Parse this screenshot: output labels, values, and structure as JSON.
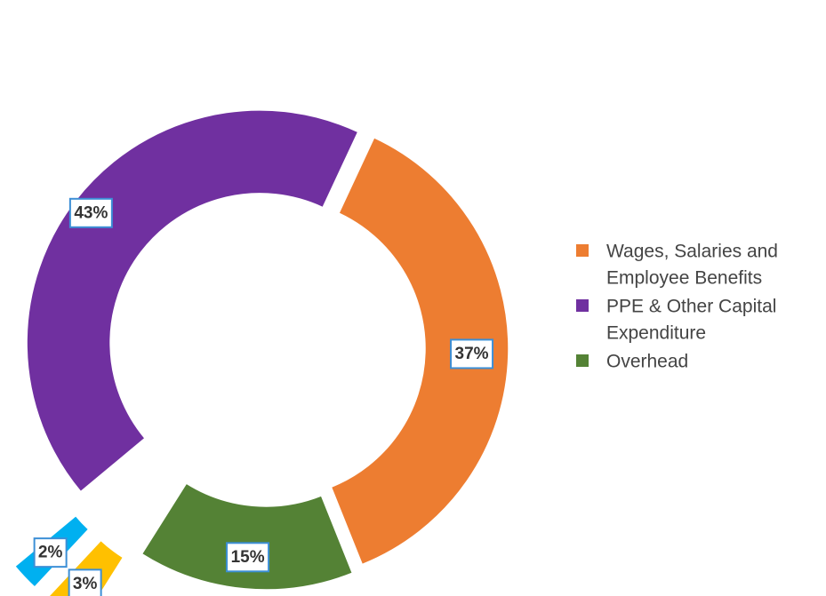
{
  "chart_data": {
    "type": "pie",
    "variant": "exploded-donut",
    "title": "",
    "slices": [
      {
        "name": "Wages, Salaries and Employee Benefits",
        "value": 37,
        "label": "37%",
        "color": "#ed7d31"
      },
      {
        "name": "Overhead",
        "value": 15,
        "label": "15%",
        "color": "#548235"
      },
      {
        "name": "",
        "value": 3,
        "label": "3%",
        "color": "#ffc000"
      },
      {
        "name": "",
        "value": 2,
        "label": "2%",
        "color": "#00b0f0"
      },
      {
        "name": "PPE & Other Capital Expenditure",
        "value": 43,
        "label": "43%",
        "color": "#7030a0"
      }
    ],
    "legend": {
      "position": "right",
      "items": [
        {
          "lines": [
            "Wages, Salaries and",
            "Employee Benefits"
          ],
          "color": "#ed7d31"
        },
        {
          "lines": [
            "PPE & Other Capital",
            "Expenditure"
          ],
          "color": "#7030a0"
        },
        {
          "lines": [
            "Overhead"
          ],
          "color": "#548235"
        }
      ]
    }
  }
}
